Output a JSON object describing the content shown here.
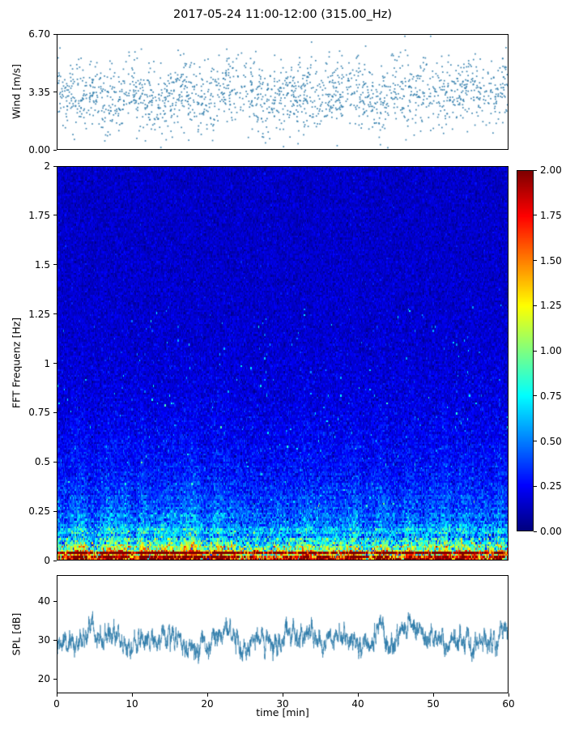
{
  "title": "2017-05-24 11:00-12:00 (315.00_Hz)",
  "chart_data": [
    {
      "id": "wind",
      "type": "scatter",
      "ylabel": "Wind [m/s]",
      "xlim": [
        0,
        60
      ],
      "ylim": [
        0,
        6.7
      ],
      "yticks": [
        {
          "v": 6.7,
          "label": "6.70"
        },
        {
          "v": 3.35,
          "label": "3.35"
        },
        {
          "v": 0,
          "label": "0.00"
        }
      ],
      "marker_color": "#2878a8",
      "grid": false,
      "legend": null,
      "synthesis": {
        "seed": 42,
        "n": 1750,
        "mean": 3.2,
        "std": 1.05,
        "min": 0.08,
        "max": 6.62
      }
    },
    {
      "id": "spectrogram",
      "type": "heatmap",
      "ylabel": "FFT Frequenz [Hz]",
      "xlim": [
        0,
        60
      ],
      "ylim": [
        0,
        2
      ],
      "clim": [
        0,
        2
      ],
      "colormap": "jet",
      "yticks": [
        {
          "v": 2,
          "label": "2"
        },
        {
          "v": 1.75,
          "label": "1.75"
        },
        {
          "v": 1.5,
          "label": "1.5"
        },
        {
          "v": 1.25,
          "label": "1.25"
        },
        {
          "v": 1,
          "label": "1"
        },
        {
          "v": 0.75,
          "label": "0.75"
        },
        {
          "v": 0.5,
          "label": "0.5"
        },
        {
          "v": 0.25,
          "label": "0.25"
        },
        {
          "v": 0,
          "label": "0"
        }
      ],
      "description": "Broadband noise: high power (1.5-2.0) below 0.1 Hz fading through yellow/green/cyan around 0.1-0.3 Hz to dark blue (0.1-0.3) above 0.5 Hz",
      "synthesis": {
        "seed": 7,
        "cols": 420,
        "rows": 200,
        "offset": 0.14,
        "amp1": 0.55,
        "tau1": 0.35,
        "amp2": 1.6,
        "tau2": 0.045,
        "std0": 0.05,
        "stdA": 0.1,
        "stdTauA": 0.5,
        "stdB": 0.35,
        "stdTauB": 0.08,
        "env_depth": 0.3,
        "speckle_p": 0.005
      }
    },
    {
      "id": "spl",
      "type": "line",
      "ylabel": "SPL [dB]",
      "xlabel": "time [min]",
      "xlim": [
        0,
        60
      ],
      "ylim": [
        16.3,
        46.7
      ],
      "yticks": [
        {
          "v": 40,
          "label": "40"
        },
        {
          "v": 30,
          "label": "30"
        },
        {
          "v": 20,
          "label": "20"
        }
      ],
      "xticks": [
        {
          "v": 0,
          "label": "0"
        },
        {
          "v": 10,
          "label": "10"
        },
        {
          "v": 20,
          "label": "20"
        },
        {
          "v": 30,
          "label": "30"
        },
        {
          "v": 40,
          "label": "40"
        },
        {
          "v": 50,
          "label": "50"
        },
        {
          "v": 60,
          "label": "60"
        }
      ],
      "line_color": "#2878a8",
      "synthesis": {
        "seed": 99,
        "n": 3200,
        "mean": 30.5,
        "slow_amp": 3.5,
        "med_amp": 3.0,
        "fast_amp": 1.5,
        "min": 19.2,
        "max": 42.8
      }
    }
  ],
  "colorbar": {
    "colormap": "jet",
    "clim": [
      0,
      2
    ],
    "ticks": [
      {
        "v": 2,
        "label": "2.00"
      },
      {
        "v": 1.75,
        "label": "1.75"
      },
      {
        "v": 1.5,
        "label": "1.50"
      },
      {
        "v": 1.25,
        "label": "1.25"
      },
      {
        "v": 1,
        "label": "1.00"
      },
      {
        "v": 0.75,
        "label": "0.75"
      },
      {
        "v": 0.5,
        "label": "0.50"
      },
      {
        "v": 0.25,
        "label": "0.25"
      },
      {
        "v": 0,
        "label": "0.00"
      }
    ]
  }
}
